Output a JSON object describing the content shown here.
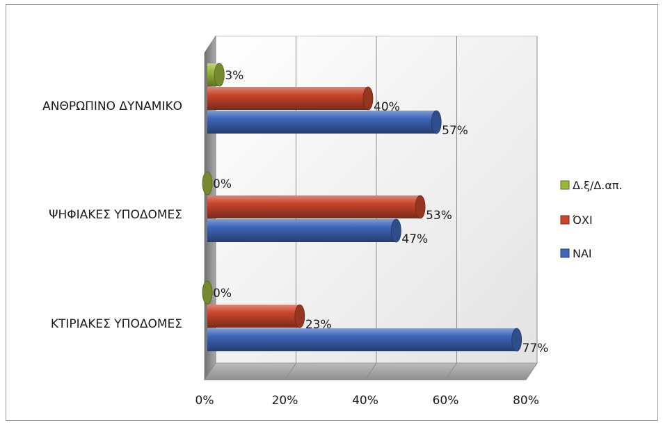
{
  "chart_data": {
    "type": "bar",
    "orientation": "horizontal",
    "categories": [
      "ΑΝΘΡΩΠΙΝΟ ΔΥΝΑΜΙΚΟ",
      "ΨΗΦΙΑΚΕΣ ΥΠΟΔΟΜΕΣ",
      "ΚΤΙΡΙΑΚΕΣ ΥΠΟΔΟΜΕΣ"
    ],
    "series": [
      {
        "name": "Δ.ξ/Δ.απ.",
        "color": "#9bb83a",
        "values": [
          3,
          0,
          0
        ],
        "labels": [
          "3%",
          "0%",
          "0%"
        ]
      },
      {
        "name": "ΌΧΙ",
        "color": "#c8462b",
        "values": [
          40,
          53,
          23
        ],
        "labels": [
          "40%",
          "53%",
          "23%"
        ]
      },
      {
        "name": "ΝΑΙ",
        "color": "#3d66b8",
        "values": [
          57,
          47,
          77
        ],
        "labels": [
          "57%",
          "47%",
          "77%"
        ]
      }
    ],
    "xlim": [
      0,
      80
    ],
    "xticks": [
      0,
      20,
      40,
      60,
      80
    ],
    "xtick_labels": [
      "0%",
      "20%",
      "40%",
      "60%",
      "80%"
    ],
    "grid": true,
    "legend_position": "right",
    "style": "3d-cylinder"
  }
}
